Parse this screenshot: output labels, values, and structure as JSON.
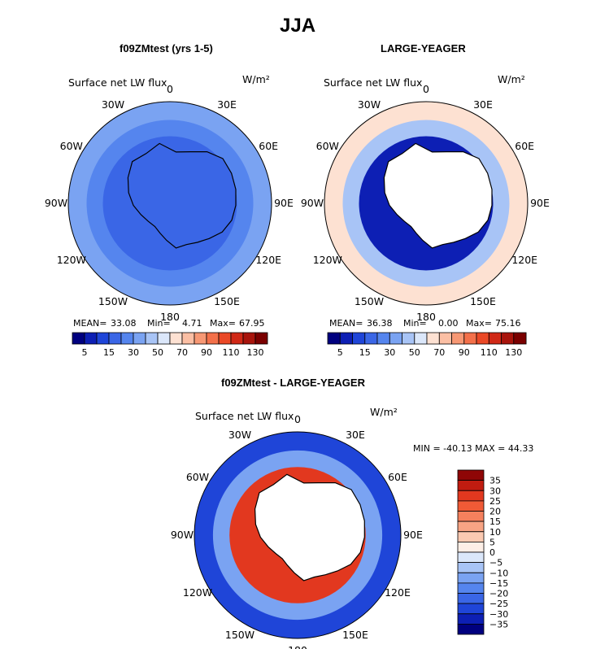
{
  "title": "JJA",
  "colors": {
    "abs_scale": [
      "#00007f",
      "#0d1fb4",
      "#1f45d8",
      "#3a66e6",
      "#5585ee",
      "#7aa3f2",
      "#a8c4f6",
      "#dbe7fa",
      "#fde1d2",
      "#fbbfa4",
      "#f79874",
      "#f3704a",
      "#ea4826",
      "#d02816",
      "#a8140c",
      "#7a0000"
    ],
    "diff_scale": [
      "#00007f",
      "#0d1fb4",
      "#1f45d8",
      "#3a66e6",
      "#5585ee",
      "#7aa3f2",
      "#a8c4f6",
      "#dbe7fa",
      "#fdeee6",
      "#fbc9b1",
      "#f8a484",
      "#f5805d",
      "#f05a36",
      "#e2381f",
      "#c01c10",
      "#8f0606"
    ],
    "land": "#ffffff",
    "coast": "#000000"
  },
  "panels": [
    {
      "title": "f09ZMtest (yrs 1-5)",
      "subtitle": "Surface net LW flux",
      "units": "W/m²",
      "stats": {
        "mean_label": "MEAN=",
        "mean": "33.08",
        "min_label": "Min=",
        "min": "4.71",
        "max_label": "Max=",
        "max": "67.95"
      }
    },
    {
      "title": "LARGE-YEAGER",
      "subtitle": "Surface net LW flux",
      "units": "W/m²",
      "stats": {
        "mean_label": "MEAN=",
        "mean": "36.38",
        "min_label": "Min=",
        "min": "0.00",
        "max_label": "Max=",
        "max": "75.16"
      }
    },
    {
      "title": "f09ZMtest - LARGE-YEAGER",
      "subtitle": "Surface net LW flux",
      "units": "W/m²",
      "stats_line": "MIN = -40.13  MAX =  44.33"
    }
  ],
  "longitude_labels": [
    "0",
    "30E",
    "60E",
    "90E",
    "120E",
    "150E",
    "180",
    "150W",
    "120W",
    "90W",
    "60W",
    "30W"
  ],
  "chart_data": [
    {
      "type": "heatmap",
      "title": "f09ZMtest (yrs 1-5)",
      "subtitle": "Surface net LW flux",
      "units": "W/m²",
      "projection": "south-polar-stereographic",
      "colorbar_ticks": [
        "5",
        "15",
        "30",
        "50",
        "70",
        "90",
        "110",
        "130"
      ],
      "stats": {
        "mean": 33.08,
        "min": 4.71,
        "max": 67.95
      },
      "field": {
        "description": "mostly 15-30 W/m² over ocean and continent; lighter 30-50 W/m² band on the outer ring and in patches",
        "rings": [
          {
            "zone": "outer",
            "level_index": 5
          },
          {
            "zone": "middle",
            "level_index": 4
          },
          {
            "zone": "inner-ocean",
            "level_index": 3
          },
          {
            "zone": "continent",
            "level_index": 3
          }
        ]
      }
    },
    {
      "type": "heatmap",
      "title": "LARGE-YEAGER",
      "subtitle": "Surface net LW flux",
      "units": "W/m²",
      "projection": "south-polar-stereographic",
      "colorbar_ticks": [
        "5",
        "15",
        "30",
        "50",
        "70",
        "90",
        "110",
        "130"
      ],
      "stats": {
        "mean": 36.38,
        "min": 0.0,
        "max": 75.16
      },
      "field": {
        "description": "very low 5-15 W/m² in sea-ice ring around Antarctica, ~50-70 in outer ocean, continent masked",
        "rings": [
          {
            "zone": "outer",
            "level_index": 8
          },
          {
            "zone": "middle",
            "level_index": 6
          },
          {
            "zone": "inner-ocean",
            "level_index": 1
          },
          {
            "zone": "continent",
            "level_index": -1
          }
        ]
      }
    },
    {
      "type": "heatmap",
      "title": "f09ZMtest - LARGE-YEAGER",
      "subtitle": "Surface net LW flux",
      "units": "W/m²",
      "projection": "south-polar-stereographic",
      "colorbar_ticks": [
        "35",
        "30",
        "25",
        "20",
        "15",
        "10",
        "5",
        "0",
        "-5",
        "-10",
        "-15",
        "-20",
        "-25",
        "-30",
        "-35"
      ],
      "stats": {
        "min": -40.13,
        "max": 44.33
      },
      "field": {
        "description": "strong positive (+20 to +35) differences in sea-ice ring, negative (-15 to -30) over outer ocean, continent masked",
        "rings": [
          {
            "zone": "outer",
            "level_index": 2
          },
          {
            "zone": "middle",
            "level_index": 5
          },
          {
            "zone": "inner-ocean",
            "level_index": 13
          },
          {
            "zone": "continent",
            "level_index": -1
          }
        ]
      }
    }
  ]
}
